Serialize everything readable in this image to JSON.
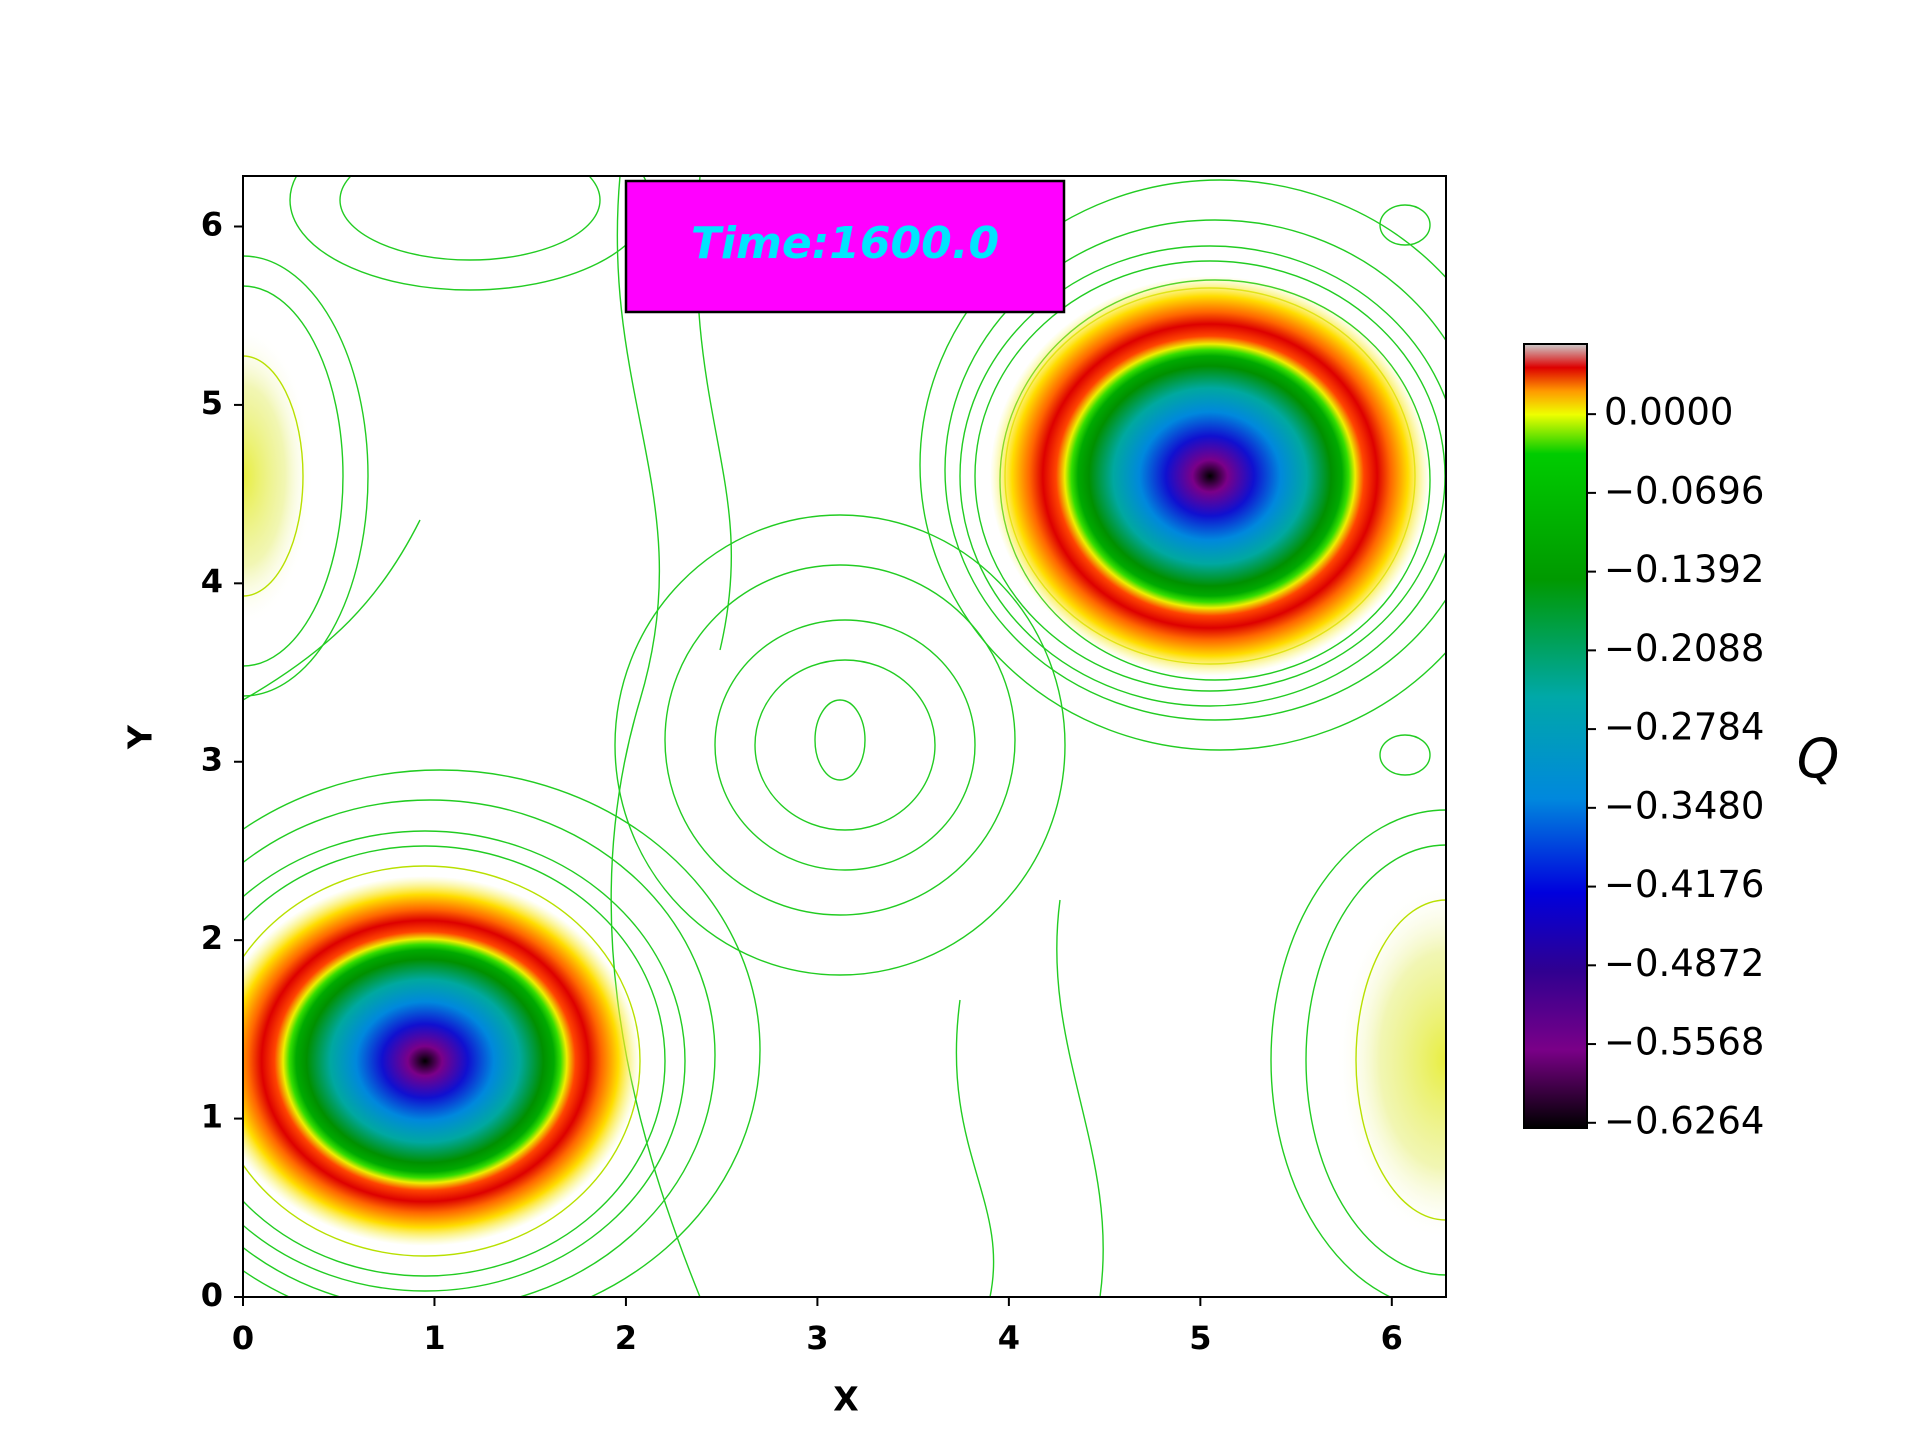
{
  "chart_data": {
    "type": "contour",
    "annotation": "Time:1600.0",
    "annotation_color": "#00e5ff",
    "annotation_box_color": "#ff00ff",
    "xlabel": "X",
    "ylabel": "Y",
    "colorbar_label": "Q",
    "xlim": [
      0,
      6.283
    ],
    "ylim": [
      0,
      6.283
    ],
    "xticks": [
      0,
      1,
      2,
      3,
      4,
      5,
      6
    ],
    "yticks": [
      0,
      1,
      2,
      3,
      4,
      5,
      6
    ],
    "clim": [
      -0.631,
      0.062
    ],
    "colorbar_ticks": [
      {
        "value": 0,
        "label": "0.0000"
      },
      {
        "value": -0.0696,
        "label": "−0.0696"
      },
      {
        "value": -0.1392,
        "label": "−0.1392"
      },
      {
        "value": -0.2088,
        "label": "−0.2088"
      },
      {
        "value": -0.2784,
        "label": "−0.2784"
      },
      {
        "value": -0.348,
        "label": "−0.3480"
      },
      {
        "value": -0.4176,
        "label": "−0.4176"
      },
      {
        "value": -0.4872,
        "label": "−0.4872"
      },
      {
        "value": -0.5568,
        "label": "−0.5568"
      },
      {
        "value": -0.6264,
        "label": "−0.6264"
      }
    ]
  }
}
